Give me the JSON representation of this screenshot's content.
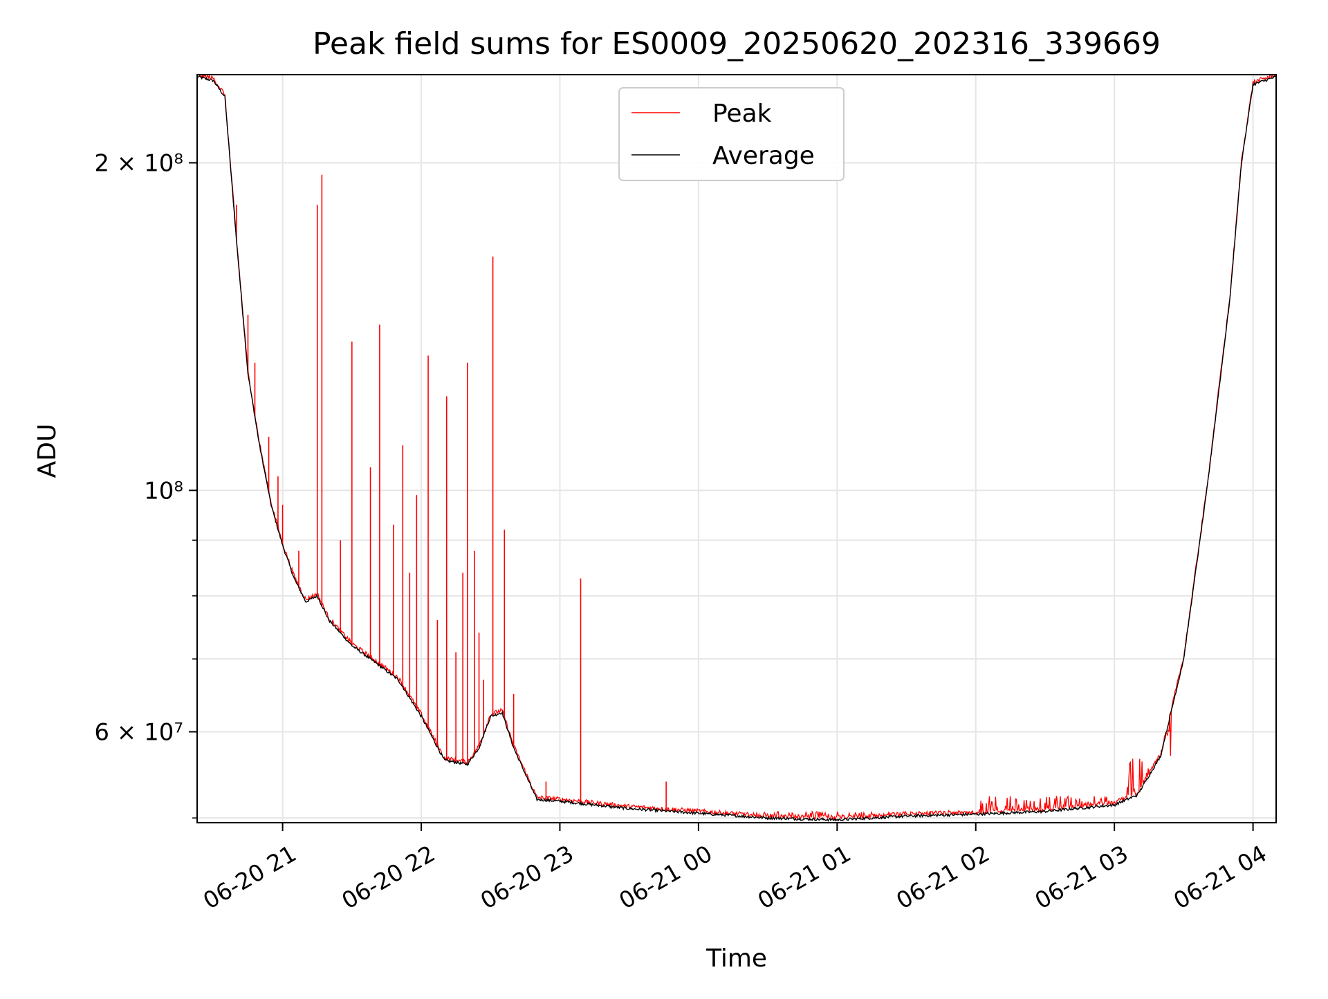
{
  "chart_data": {
    "type": "line",
    "title": "Peak field sums for ES0009_20250620_202316_339669",
    "xlabel": "Time",
    "ylabel": "ADU",
    "yscale": "log",
    "grid": true,
    "legend_placement": "upper center",
    "x_range": [
      "2025-06-20 20:23",
      "2025-06-21 04:10"
    ],
    "ylim": [
      49500000,
      241000000
    ],
    "x_ticks": [
      {
        "value": "2025-06-20 21:00",
        "label": "06-20 21"
      },
      {
        "value": "2025-06-20 22:00",
        "label": "06-20 22"
      },
      {
        "value": "2025-06-20 23:00",
        "label": "06-20 23"
      },
      {
        "value": "2025-06-21 00:00",
        "label": "06-21 00"
      },
      {
        "value": "2025-06-21 01:00",
        "label": "06-21 01"
      },
      {
        "value": "2025-06-21 02:00",
        "label": "06-21 02"
      },
      {
        "value": "2025-06-21 03:00",
        "label": "06-21 03"
      },
      {
        "value": "2025-06-21 04:00",
        "label": "06-21 04"
      }
    ],
    "y_ticks": [
      {
        "value": 200000000,
        "label": "2 × 10⁸"
      },
      {
        "value": 100000000,
        "label": "10⁸"
      },
      {
        "value": 60000000,
        "label": "6 × 10⁷"
      }
    ],
    "y_minor_ticks": [
      50000000,
      70000000,
      80000000,
      90000000
    ],
    "series": [
      {
        "name": "Average",
        "color": "#000000",
        "x": [
          "2025-06-20 20:23",
          "2025-06-20 20:30",
          "2025-06-20 20:35",
          "2025-06-20 20:40",
          "2025-06-20 20:45",
          "2025-06-20 20:50",
          "2025-06-20 20:55",
          "2025-06-20 21:00",
          "2025-06-20 21:05",
          "2025-06-20 21:10",
          "2025-06-20 21:15",
          "2025-06-20 21:20",
          "2025-06-20 21:30",
          "2025-06-20 21:40",
          "2025-06-20 21:50",
          "2025-06-20 22:00",
          "2025-06-20 22:10",
          "2025-06-20 22:20",
          "2025-06-20 22:25",
          "2025-06-20 22:30",
          "2025-06-20 22:35",
          "2025-06-20 22:40",
          "2025-06-20 22:50",
          "2025-06-20 23:00",
          "2025-06-20 23:30",
          "2025-06-21 00:00",
          "2025-06-21 00:30",
          "2025-06-21 01:00",
          "2025-06-21 01:30",
          "2025-06-21 02:00",
          "2025-06-21 02:30",
          "2025-06-21 03:00",
          "2025-06-21 03:10",
          "2025-06-21 03:20",
          "2025-06-21 03:30",
          "2025-06-21 03:40",
          "2025-06-21 03:50",
          "2025-06-21 03:55",
          "2025-06-21 04:00",
          "2025-06-21 04:10"
        ],
        "values": [
          240000000,
          238000000,
          230000000,
          170000000,
          128000000,
          110000000,
          97000000,
          89000000,
          83000000,
          79000000,
          80000000,
          76000000,
          72000000,
          69500000,
          67000000,
          62000000,
          56500000,
          56000000,
          58000000,
          62000000,
          62500000,
          58000000,
          52000000,
          51800000,
          51000000,
          50500000,
          50000000,
          49800000,
          50200000,
          50400000,
          50700000,
          51400000,
          52500000,
          57000000,
          70000000,
          100000000,
          150000000,
          200000000,
          236000000,
          240000000
        ]
      },
      {
        "name": "Peak",
        "color": "#ff0000",
        "spikes": [
          {
            "x": "2025-06-20 20:40",
            "value": 183000000
          },
          {
            "x": "2025-06-20 20:45",
            "value": 145000000
          },
          {
            "x": "2025-06-20 20:48",
            "value": 131000000
          },
          {
            "x": "2025-06-20 20:54",
            "value": 112000000
          },
          {
            "x": "2025-06-20 20:58",
            "value": 103000000
          },
          {
            "x": "2025-06-20 21:00",
            "value": 97000000
          },
          {
            "x": "2025-06-20 21:07",
            "value": 88000000
          },
          {
            "x": "2025-06-20 21:15",
            "value": 183000000
          },
          {
            "x": "2025-06-20 21:17",
            "value": 195000000
          },
          {
            "x": "2025-06-20 21:25",
            "value": 90000000
          },
          {
            "x": "2025-06-20 21:30",
            "value": 137000000
          },
          {
            "x": "2025-06-20 21:38",
            "value": 105000000
          },
          {
            "x": "2025-06-20 21:42",
            "value": 142000000
          },
          {
            "x": "2025-06-20 21:48",
            "value": 93000000
          },
          {
            "x": "2025-06-20 21:52",
            "value": 110000000
          },
          {
            "x": "2025-06-20 21:55",
            "value": 84000000
          },
          {
            "x": "2025-06-20 21:58",
            "value": 99000000
          },
          {
            "x": "2025-06-20 22:03",
            "value": 133000000
          },
          {
            "x": "2025-06-20 22:07",
            "value": 76000000
          },
          {
            "x": "2025-06-20 22:11",
            "value": 122000000
          },
          {
            "x": "2025-06-20 22:15",
            "value": 71000000
          },
          {
            "x": "2025-06-20 22:18",
            "value": 84000000
          },
          {
            "x": "2025-06-20 22:20",
            "value": 131000000
          },
          {
            "x": "2025-06-20 22:23",
            "value": 88000000
          },
          {
            "x": "2025-06-20 22:25",
            "value": 74000000
          },
          {
            "x": "2025-06-20 22:27",
            "value": 67000000
          },
          {
            "x": "2025-06-20 22:31",
            "value": 164000000
          },
          {
            "x": "2025-06-20 22:36",
            "value": 92000000
          },
          {
            "x": "2025-06-20 22:40",
            "value": 65000000
          },
          {
            "x": "2025-06-20 22:54",
            "value": 54000000
          },
          {
            "x": "2025-06-20 23:09",
            "value": 83000000
          },
          {
            "x": "2025-06-20 23:46",
            "value": 54000000
          }
        ],
        "noise_band": [
          {
            "x_start": "2025-06-21 00:20",
            "x_end": "2025-06-21 02:00",
            "max": 50700000
          },
          {
            "x_start": "2025-06-21 02:00",
            "x_end": "2025-06-21 03:05",
            "max": 52400000
          },
          {
            "x_start": "2025-06-21 03:05",
            "x_end": "2025-06-21 03:25",
            "max": 57000000
          }
        ]
      }
    ]
  }
}
